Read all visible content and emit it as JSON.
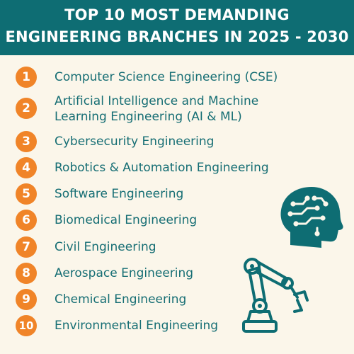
{
  "header": {
    "title_line1": "TOP 10 MOST DEMANDING",
    "title_line2": "ENGINEERING BRANCHES IN 2025 - 2030"
  },
  "colors": {
    "header_bg": "#0e6d73",
    "badge": "#f08428",
    "text": "#166e74",
    "background": "#fbf6ea"
  },
  "items": [
    {
      "number": "1",
      "label": "Computer Science Engineering (CSE)"
    },
    {
      "number": "2",
      "label_line1": "Artificial Intelligence and Machine",
      "label_line2": "Learning Engineering (AI & ML)"
    },
    {
      "number": "3",
      "label": "Cybersecurity Engineering"
    },
    {
      "number": "4",
      "label": "Robotics & Automation Engineering"
    },
    {
      "number": "5",
      "label": "Software Engineering"
    },
    {
      "number": "6",
      "label": "Biomedical Engineering"
    },
    {
      "number": "7",
      "label": "Civil Engineering"
    },
    {
      "number": "8",
      "label": "Aerospace Engineering"
    },
    {
      "number": "9",
      "label": "Chemical Engineering"
    },
    {
      "number": "10",
      "label": "Environmental Engineering"
    }
  ],
  "illustrations": {
    "head": "brain-circuit-head-icon",
    "arm": "robotic-arm-icon"
  }
}
